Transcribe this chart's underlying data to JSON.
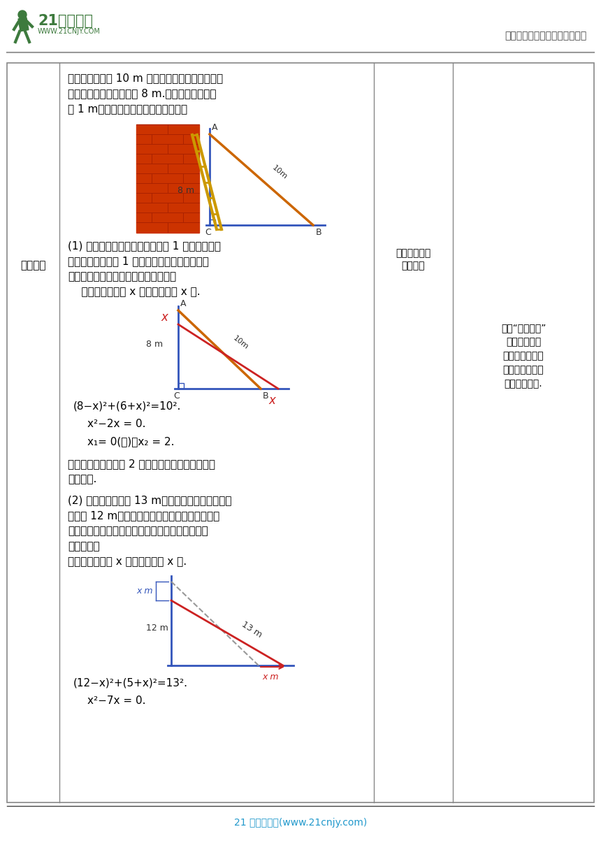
{
  "header_right": "中小学教育资源及组卷应用平台",
  "footer_text": "21 世纪教育网(www.21cnjy.com)",
  "col1_header": "讲授新课",
  "intro_line1": "如图，一个长为 10 m 的梯子斜靠在墙上，梯子的",
  "intro_line2": "顶端距地面的垂直距离为 8 m.如果梯子的顶端下",
  "intro_line3": "滑 1 m，那么梯子的底端滑动多少米？",
  "part1_line1": "(1) 在这个问题中，梯子顶端下滑 1 米时，梯子底",
  "part1_line2": "端滑动的距离大于 1 米，那么梯子顶端下滑几米",
  "part1_line3": "时，梯子底端滑动的距离和它相等呢？",
  "part1_line4": "    设梯子顶端下滑 x 米，底端滑动 x 米.",
  "eq1": "(8−x)²+(6+x)²=10².",
  "eq2": "x²−2x = 0.",
  "eq3": "x₁= 0(舍)，x₂ = 2.",
  "conc1": "因此，梯子底端下滑 2 米时，梯子底端滑动的距离",
  "conc2": "和它相等.",
  "part2_line1": "(2) 如果梯子长度是 13 m，梯子顶端与地面的垂直",
  "part2_line2": "距离为 12 m，那么梯子顶端下滑的距离与梯子底",
  "part2_line3": "端滑动的距离可能相等吗？如果相等，那么这个距",
  "part2_line4": "离是多少？",
  "part2_line5": "设梯子顶端下滑 x 米，底端滑动 x 米.",
  "eq4": "(12−x)²+(5+x)²=13².",
  "eq5": "x²−7x = 0.",
  "col3_line1": "尝试列方程，",
  "col3_line2": "独立解决",
  "col4_line1": "选用“梯子下滑”",
  "col4_line2": "的问题作为情",
  "col4_line3": "境，引入用一元",
  "col4_line4": "二次方程解决实",
  "col4_line5": "际问题的内容.",
  "bg_color": "#ffffff",
  "border_color": "#888888",
  "text_color": "#000000",
  "logo_green": "#3d7a3d",
  "footer_blue": "#2299cc",
  "blue_line": "#3355bb",
  "orange_line": "#cc6600",
  "red_line": "#cc2222"
}
